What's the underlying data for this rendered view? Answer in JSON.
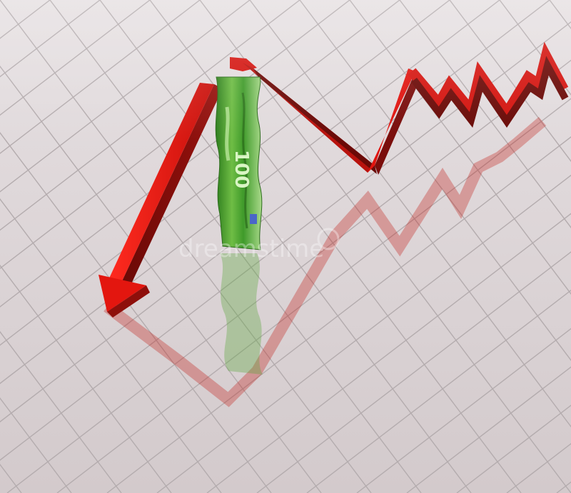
{
  "scene": {
    "description_tag": "render",
    "arrow_color": "#e0140f",
    "arrow_shadow_color": "#7a0d0b",
    "floor_color": "#dcd4d6",
    "grid_color": "#b6aeb0",
    "banknote_color": "#3f9a2a",
    "banknote_light": "#9fd27a",
    "banknote_denomination": "100",
    "watermark_text": "dreamstime"
  }
}
